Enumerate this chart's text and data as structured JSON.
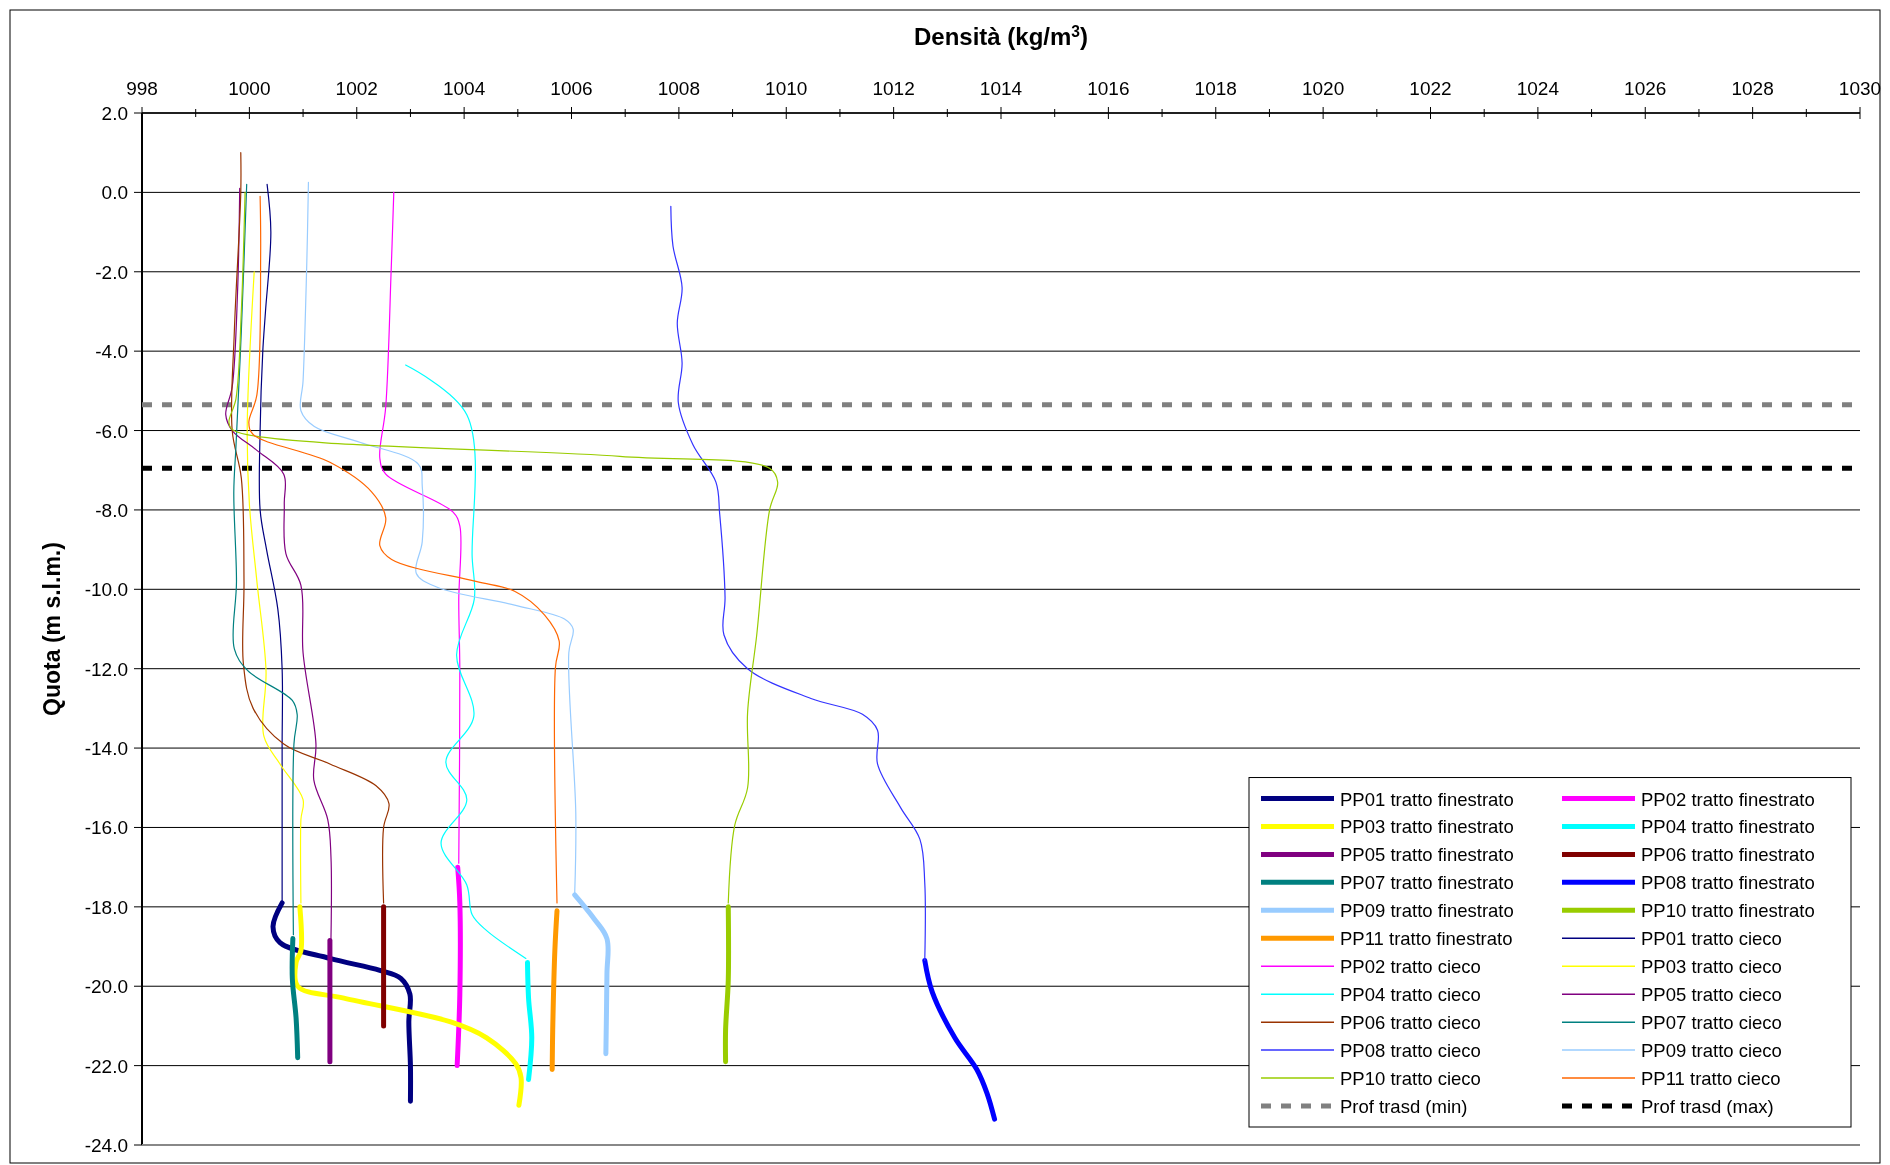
{
  "chart_data": {
    "type": "line",
    "title": "Densità (kg/m$^{3}$)",
    "ylabel": "Quota (m s.l.m.)",
    "xlim": [
      998,
      1030
    ],
    "xticks": [
      998,
      {
        "value": 999,
        "label": null
      },
      1000,
      {
        "value": 1001,
        "label": null
      },
      1002,
      {
        "value": 1003,
        "label": null
      },
      1004,
      {
        "value": 1005,
        "label": null
      },
      1006,
      {
        "value": 1007,
        "label": null
      },
      1008,
      {
        "value": 1009,
        "label": null
      },
      1010,
      {
        "value": 1011,
        "label": null
      },
      1012,
      {
        "value": 1013,
        "label": null
      },
      1014,
      {
        "value": 1015,
        "label": null
      },
      1016,
      {
        "value": 1017,
        "label": null
      },
      1018,
      {
        "value": 1019,
        "label": null
      },
      1020,
      {
        "value": 1021,
        "label": null
      },
      1022,
      {
        "value": 1023,
        "label": null
      },
      1024,
      {
        "value": 1025,
        "label": null
      },
      1026,
      {
        "value": 1027,
        "label": null
      },
      1028,
      {
        "value": 1029,
        "label": null
      },
      1030
    ],
    "ylim": [
      -24,
      2
    ],
    "yticks": [
      {
        "value": 2,
        "label": "2.0"
      },
      {
        "value": 0,
        "label": "0.0"
      },
      {
        "value": -2,
        "label": "-2.0"
      },
      {
        "value": -4,
        "label": "-4.0"
      },
      {
        "value": -6,
        "label": "-6.0"
      },
      {
        "value": -8,
        "label": "-8.0"
      },
      {
        "value": -10,
        "label": "-10.0"
      },
      {
        "value": -12,
        "label": "-12.0"
      },
      {
        "value": -14,
        "label": "-14.0"
      },
      {
        "value": -16,
        "label": "-16.0"
      },
      {
        "value": -18,
        "label": "-18.0"
      },
      {
        "value": -20,
        "label": "-20.0"
      },
      {
        "value": -22,
        "label": "-22.0"
      },
      {
        "value": -24,
        "label": "-24.0"
      }
    ],
    "grid": "y",
    "legend": "bottom right",
    "marker": "none",
    "line_style": "solid",
    "series": [
      {
        "name": "PP01 tratto finestrato",
        "color": "#000080",
        "x": [
          1000.61,
          1000.44,
          1000.57,
          1001.5,
          1002.43,
          1002.82,
          1002.99,
          1002.97,
          1003.0,
          1003.0
        ],
        "values": [
          -17.9,
          -18.5,
          -18.9,
          -19.3,
          -19.6,
          -19.8,
          -20.2,
          -20.9,
          -22.0,
          -22.9
        ]
      },
      {
        "name": "PP02 tratto finestrato",
        "color": "#ff00ff",
        "x": [
          1003.88,
          1003.92,
          1003.92,
          1003.87
        ],
        "values": [
          -17.0,
          -17.9,
          -20.2,
          -22.0
        ]
      },
      {
        "name": "PP03 tratto finestrato",
        "color": "#ffff00",
        "x": [
          1000.94,
          1000.96,
          1000.87,
          1000.9,
          1001.76,
          1003.75,
          1004.42,
          1004.96,
          1005.06,
          1005.02
        ],
        "values": [
          -18.0,
          -19.1,
          -19.4,
          -20.0,
          -20.3,
          -20.9,
          -21.3,
          -21.95,
          -22.3,
          -23.0
        ]
      },
      {
        "name": "PP04 tratto finestrato",
        "color": "#00ffff",
        "x": [
          1005.18,
          1005.2,
          1005.26,
          1005.2
        ],
        "values": [
          -19.4,
          -20.3,
          -21.3,
          -22.35
        ]
      },
      {
        "name": "PP05 tratto finestrato",
        "color": "#800080",
        "x": [
          1001.5,
          1001.5
        ],
        "values": [
          -18.85,
          -21.9
        ]
      },
      {
        "name": "PP06 tratto finestrato",
        "color": "#800000",
        "x": [
          1002.5,
          1002.5
        ],
        "values": [
          -18.0,
          -21.0
        ]
      },
      {
        "name": "PP07 tratto finestrato",
        "color": "#008080",
        "x": [
          1000.81,
          1000.8,
          1000.87,
          1000.9
        ],
        "values": [
          -18.8,
          -19.8,
          -20.8,
          -21.8
        ]
      },
      {
        "name": "PP08 tratto finestrato",
        "color": "#0000ff",
        "x": [
          1012.58,
          1012.72,
          1013.14,
          1013.55,
          1013.74,
          1013.88
        ],
        "values": [
          -19.35,
          -20.15,
          -21.3,
          -22.1,
          -22.7,
          -23.35
        ]
      },
      {
        "name": "PP09 tratto finestrato",
        "color": "#99ccff",
        "x": [
          1006.06,
          1006.42,
          1006.66,
          1006.66,
          1006.64
        ],
        "values": [
          -17.7,
          -18.3,
          -18.8,
          -19.7,
          -21.7
        ]
      },
      {
        "name": "PP10 tratto finestrato",
        "color": "#99cc00",
        "x": [
          1008.92,
          1008.92,
          1008.87,
          1008.87
        ],
        "values": [
          -18.0,
          -19.85,
          -21.1,
          -21.9
        ]
      },
      {
        "name": "PP11 tratto finestrato",
        "color": "#ff9900",
        "x": [
          1005.73,
          1005.69,
          1005.65,
          1005.64
        ],
        "values": [
          -18.1,
          -19.1,
          -21.1,
          -22.1
        ]
      },
      {
        "name": "PP01 tratto cieco",
        "color": "#000080",
        "x": [
          1000.33,
          1000.4,
          1000.3,
          1000.25,
          1000.2,
          1000.2,
          1000.32,
          1000.53,
          1000.61,
          1000.61,
          1000.61
        ],
        "values": [
          0.2,
          -1,
          -3,
          -4,
          -6,
          -8,
          -9,
          -10.5,
          -12,
          -14,
          -17.9
        ]
      },
      {
        "name": "PP02 tratto cieco",
        "color": "#ff00ff",
        "x": [
          1002.69,
          1002.64,
          1002.54,
          1002.43,
          1002.54,
          1003.79,
          1003.92,
          1003.9,
          1003.92,
          1003.9
        ],
        "values": [
          0.0,
          -2.0,
          -5.4,
          -6.7,
          -7.1,
          -8.05,
          -8.4,
          -10.3,
          -12.05,
          -16.9
        ]
      },
      {
        "name": "PP03 tratto cieco",
        "color": "#ffff00",
        "x": [
          1000.09,
          999.96,
          1000.0,
          1000.14,
          1000.31,
          1000.27,
          1000.57,
          1001.0,
          1000.96,
          1000.96
        ],
        "values": [
          -2.0,
          -5.9,
          -7.85,
          -9.8,
          -12.05,
          -13.7,
          -14.4,
          -15.3,
          -15.8,
          -17.9
        ]
      },
      {
        "name": "PP04 tratto cieco",
        "color": "#00ffff",
        "x": [
          1002.91,
          1004.05,
          1004.15,
          1004.19,
          1003.86,
          1004.18,
          1003.66,
          1004.05,
          1003.57,
          1004.05,
          1004.15,
          1004.42,
          1005.15
        ],
        "values": [
          -4.35,
          -5.6,
          -9.2,
          -10.24,
          -11.65,
          -13.2,
          -14.35,
          -15.3,
          -16.4,
          -17.45,
          -18.2,
          -18.6,
          -19.3
        ]
      },
      {
        "name": "PP05 tratto cieco",
        "color": "#800080",
        "x": [
          999.82,
          999.78,
          999.68,
          999.56,
          999.68,
          1000.14,
          1000.64,
          1000.65,
          1000.68,
          1000.96,
          1001.0,
          1001.24,
          1001.2,
          1001.46,
          1001.52,
          1001.52
        ],
        "values": [
          0.1,
          -2.5,
          -4.9,
          -5.6,
          -6.0,
          -6.5,
          -7.1,
          -7.85,
          -9.1,
          -9.9,
          -11.6,
          -13.9,
          -14.8,
          -15.8,
          -16.75,
          -18.8
        ]
      },
      {
        "name": "PP06 tratto cieco",
        "color": "#993300",
        "x": [
          999.84,
          999.84,
          999.72,
          999.68,
          999.85,
          999.9,
          999.89,
          1000.07,
          1000.64,
          1001.5,
          1002.36,
          1002.6,
          1002.5,
          1002.5
        ],
        "values": [
          1.0,
          0.0,
          -3.5,
          -6.0,
          -7.2,
          -9.8,
          -11.9,
          -13.0,
          -13.9,
          -14.4,
          -14.95,
          -15.4,
          -16.0,
          -17.9
        ]
      },
      {
        "name": "PP07 tratto cieco",
        "color": "#008080",
        "x": [
          999.95,
          999.85,
          999.75,
          999.71,
          999.76,
          999.72,
          999.97,
          1000.8,
          1000.89,
          1000.83,
          1000.82
        ],
        "values": [
          0.2,
          -3.5,
          -6.4,
          -7.55,
          -9.8,
          -11.5,
          -12.05,
          -12.8,
          -13.15,
          -13.9,
          -18.7
        ]
      },
      {
        "name": "PP08 tratto cieco",
        "color": "#3333ff",
        "x": [
          1007.85,
          1007.89,
          1008.06,
          1007.97,
          1008.06,
          1007.99,
          1008.26,
          1008.69,
          1008.76,
          1008.86,
          1008.84,
          1009.28,
          1010.46,
          1011.42,
          1011.7,
          1011.7,
          1012.13,
          1012.49,
          1012.58,
          1012.58
        ],
        "values": [
          -0.35,
          -1.35,
          -2.4,
          -3.3,
          -4.3,
          -5.3,
          -6.35,
          -7.3,
          -8.1,
          -10.2,
          -11.15,
          -12.0,
          -12.75,
          -13.15,
          -13.55,
          -14.4,
          -15.5,
          -16.3,
          -17.4,
          -19.35
        ]
      },
      {
        "name": "PP09 tratto cieco",
        "color": "#99ccff",
        "x": [
          1001.1,
          1001.07,
          1001.0,
          1000.96,
          1001.21,
          1002.07,
          1003.15,
          1003.22,
          1003.22,
          1003.11,
          1003.5,
          1004.94,
          1005.87,
          1006.03,
          1005.95,
          1006.08,
          1006.06
        ],
        "values": [
          0.25,
          -1.75,
          -4.75,
          -5.5,
          -5.9,
          -6.3,
          -6.85,
          -7.4,
          -8.8,
          -9.6,
          -9.95,
          -10.4,
          -10.75,
          -11.0,
          -11.6,
          -15.65,
          -17.65
        ]
      },
      {
        "name": "PP10 tratto cieco",
        "color": "#99cc00",
        "x": [
          999.92,
          999.85,
          999.75,
          999.62,
          999.71,
          1006.9,
          1009.69,
          1009.84,
          1009.69,
          1009.45,
          1009.28,
          1009.28,
          1009.04,
          1008.92
        ],
        "values": [
          0.0,
          -3.0,
          -5.2,
          -5.8,
          -6.0,
          -6.65,
          -6.95,
          -7.3,
          -8.0,
          -11.15,
          -13.1,
          -15.0,
          -15.95,
          -17.9
        ]
      },
      {
        "name": "PP11 tratto cieco",
        "color": "#ff6600",
        "x": [
          1000.2,
          1000.21,
          1000.14,
          999.99,
          1000.07,
          1001.5,
          1002.28,
          1002.54,
          1002.43,
          1002.65,
          1004.22,
          1004.94,
          1005.5,
          1005.77,
          1005.7,
          1005.73
        ],
        "values": [
          -0.1,
          -1.55,
          -5.1,
          -5.8,
          -6.1,
          -6.8,
          -7.55,
          -8.2,
          -8.9,
          -9.25,
          -9.8,
          -10.05,
          -10.65,
          -11.3,
          -11.98,
          -17.9
        ]
      }
    ],
    "ref_lines": [
      {
        "axis": "y",
        "value": -5.35,
        "label": "Prof trasd (min)",
        "color": "#808080",
        "line_style": "dashed"
      },
      {
        "axis": "y",
        "value": -6.95,
        "label": "Prof trasd (max)",
        "color": "#000000",
        "line_style": "dashed"
      }
    ]
  }
}
